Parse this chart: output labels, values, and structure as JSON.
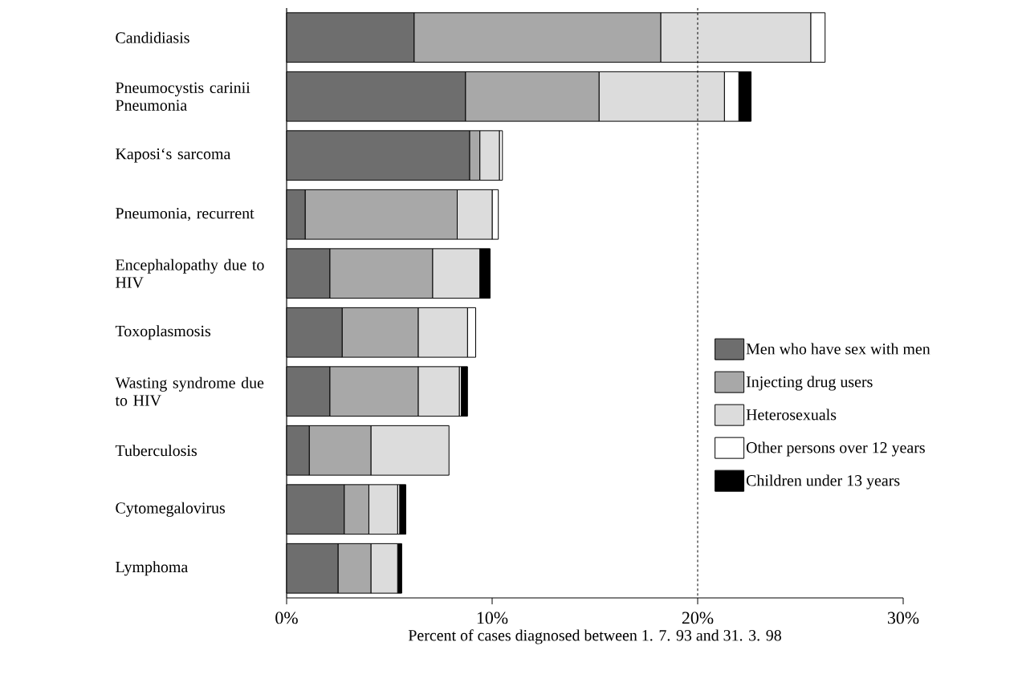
{
  "chart_data": {
    "type": "bar",
    "orientation": "horizontal",
    "stacked": true,
    "categories": [
      "Candidiasis",
      "Pneumocystis carinii Pneumonia",
      "Kaposi‘s sarcoma",
      "Pneumonia, recurrent",
      "Encephalopathy due to HIV",
      "Toxoplasmosis",
      "Wasting syndrome due to HIV",
      "Tuberculosis",
      "Cytomegalovirus",
      "Lymphoma"
    ],
    "series": [
      {
        "name": "Men who have sex with men",
        "color": "#6e6e6e",
        "values": [
          6.2,
          8.7,
          8.9,
          0.9,
          2.1,
          2.7,
          2.1,
          1.1,
          2.8,
          2.5
        ]
      },
      {
        "name": "Injecting drug users",
        "color": "#a8a8a8",
        "values": [
          12.0,
          6.5,
          0.5,
          7.4,
          5.0,
          3.7,
          4.3,
          3.0,
          1.2,
          1.6
        ]
      },
      {
        "name": "Heterosexuals",
        "color": "#dcdcdc",
        "values": [
          7.3,
          6.1,
          0.95,
          1.7,
          2.3,
          2.4,
          2.0,
          3.8,
          1.4,
          1.3
        ]
      },
      {
        "name": "Other persons over 12 years",
        "color": "#ffffff",
        "values": [
          0.7,
          0.7,
          0.15,
          0.3,
          null,
          0.4,
          0.1,
          null,
          0.1,
          null
        ]
      },
      {
        "name": "Children under 13 years",
        "color": "#000000",
        "values": [
          null,
          0.6,
          null,
          null,
          0.5,
          null,
          0.3,
          null,
          0.3,
          0.2
        ]
      }
    ],
    "xlabel": "Percent of cases diagnosed between 1. 7. 93 and 31. 3. 98",
    "xlim": [
      0,
      30
    ],
    "xticks": [
      {
        "value": 0,
        "label": "0%"
      },
      {
        "value": 10,
        "label": "10%"
      },
      {
        "value": 20,
        "label": "20%"
      },
      {
        "value": 30,
        "label": "30%"
      }
    ],
    "ref_lines": [
      {
        "axis": "x",
        "value": 20,
        "color": "#000000",
        "line_style": "dashed"
      }
    ],
    "legend": "right",
    "grid": false
  }
}
